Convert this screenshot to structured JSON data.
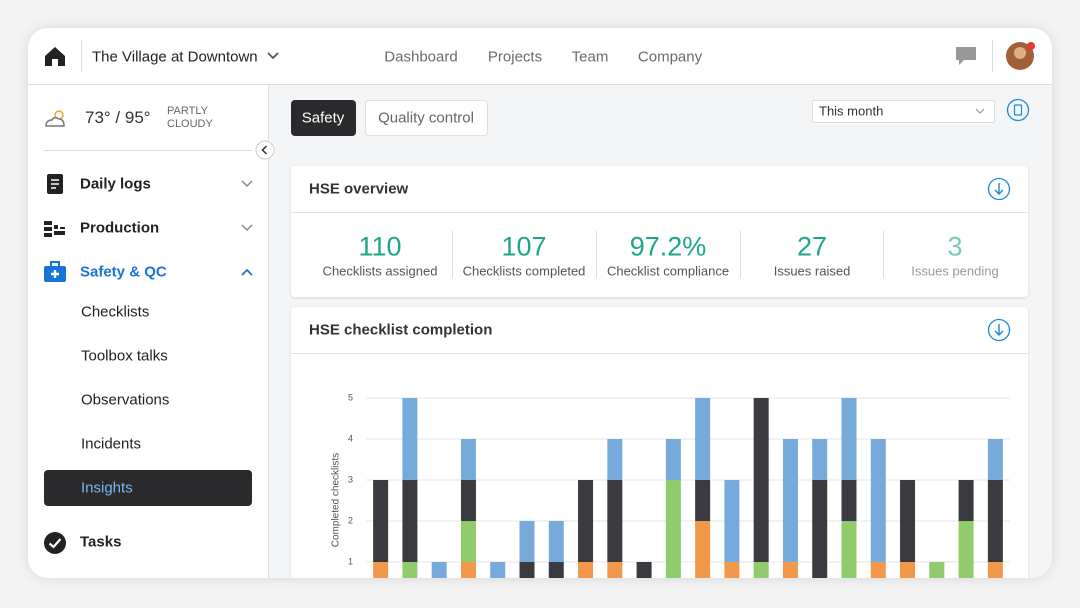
{
  "header": {
    "project": "The Village at Downtown",
    "nav": [
      "Dashboard",
      "Projects",
      "Team",
      "Company"
    ]
  },
  "weather": {
    "temp": "73° / 95°",
    "condition": "PARTLY CLOUDY"
  },
  "sidebar": {
    "items": [
      "Daily logs",
      "Production",
      "Safety & QC"
    ],
    "sub_items": [
      "Checklists",
      "Toolbox talks",
      "Observations",
      "Incidents",
      "Insights"
    ],
    "tasks": "Tasks"
  },
  "tabs": [
    "Safety",
    "Quality control"
  ],
  "period": "This month",
  "overview": {
    "title": "HSE overview",
    "stats": [
      {
        "value": "110",
        "label": "Checklists assigned"
      },
      {
        "value": "107",
        "label": "Checklists completed"
      },
      {
        "value": "97.2%",
        "label": "Checklist compliance"
      },
      {
        "value": "27",
        "label": "Issues raised"
      },
      {
        "value": "3",
        "label": "Issues pending"
      }
    ]
  },
  "chart_data": {
    "type": "stacked_bar",
    "title": "HSE checklist completion",
    "y_label": "Completed checklists",
    "ylim": [
      0,
      5
    ],
    "yticks": [
      1,
      2,
      3,
      4,
      5
    ],
    "grid": true,
    "series": [
      {
        "color": "#f2984b",
        "values": [
          1,
          0,
          0,
          1,
          0,
          0,
          0,
          1,
          1,
          0,
          0,
          2,
          1,
          0,
          1,
          0,
          0,
          1,
          1,
          0,
          0,
          1
        ]
      },
      {
        "color": "#90cc6b",
        "values": [
          0,
          1,
          0,
          1,
          0,
          0,
          0,
          0,
          0,
          0,
          3,
          0,
          0,
          1,
          0,
          0,
          2,
          0,
          0,
          1,
          2,
          0
        ]
      },
      {
        "color": "#3a3b40",
        "values": [
          2,
          2,
          0,
          1,
          0,
          1,
          1,
          2,
          2,
          1,
          0,
          1,
          0,
          4,
          0,
          3,
          1,
          0,
          2,
          0,
          1,
          2
        ]
      },
      {
        "color": "#76aadb",
        "values": [
          0,
          2,
          1,
          1,
          1,
          1,
          1,
          0,
          1,
          0,
          1,
          2,
          2,
          0,
          3,
          1,
          2,
          3,
          0,
          0,
          0,
          1
        ]
      }
    ]
  }
}
